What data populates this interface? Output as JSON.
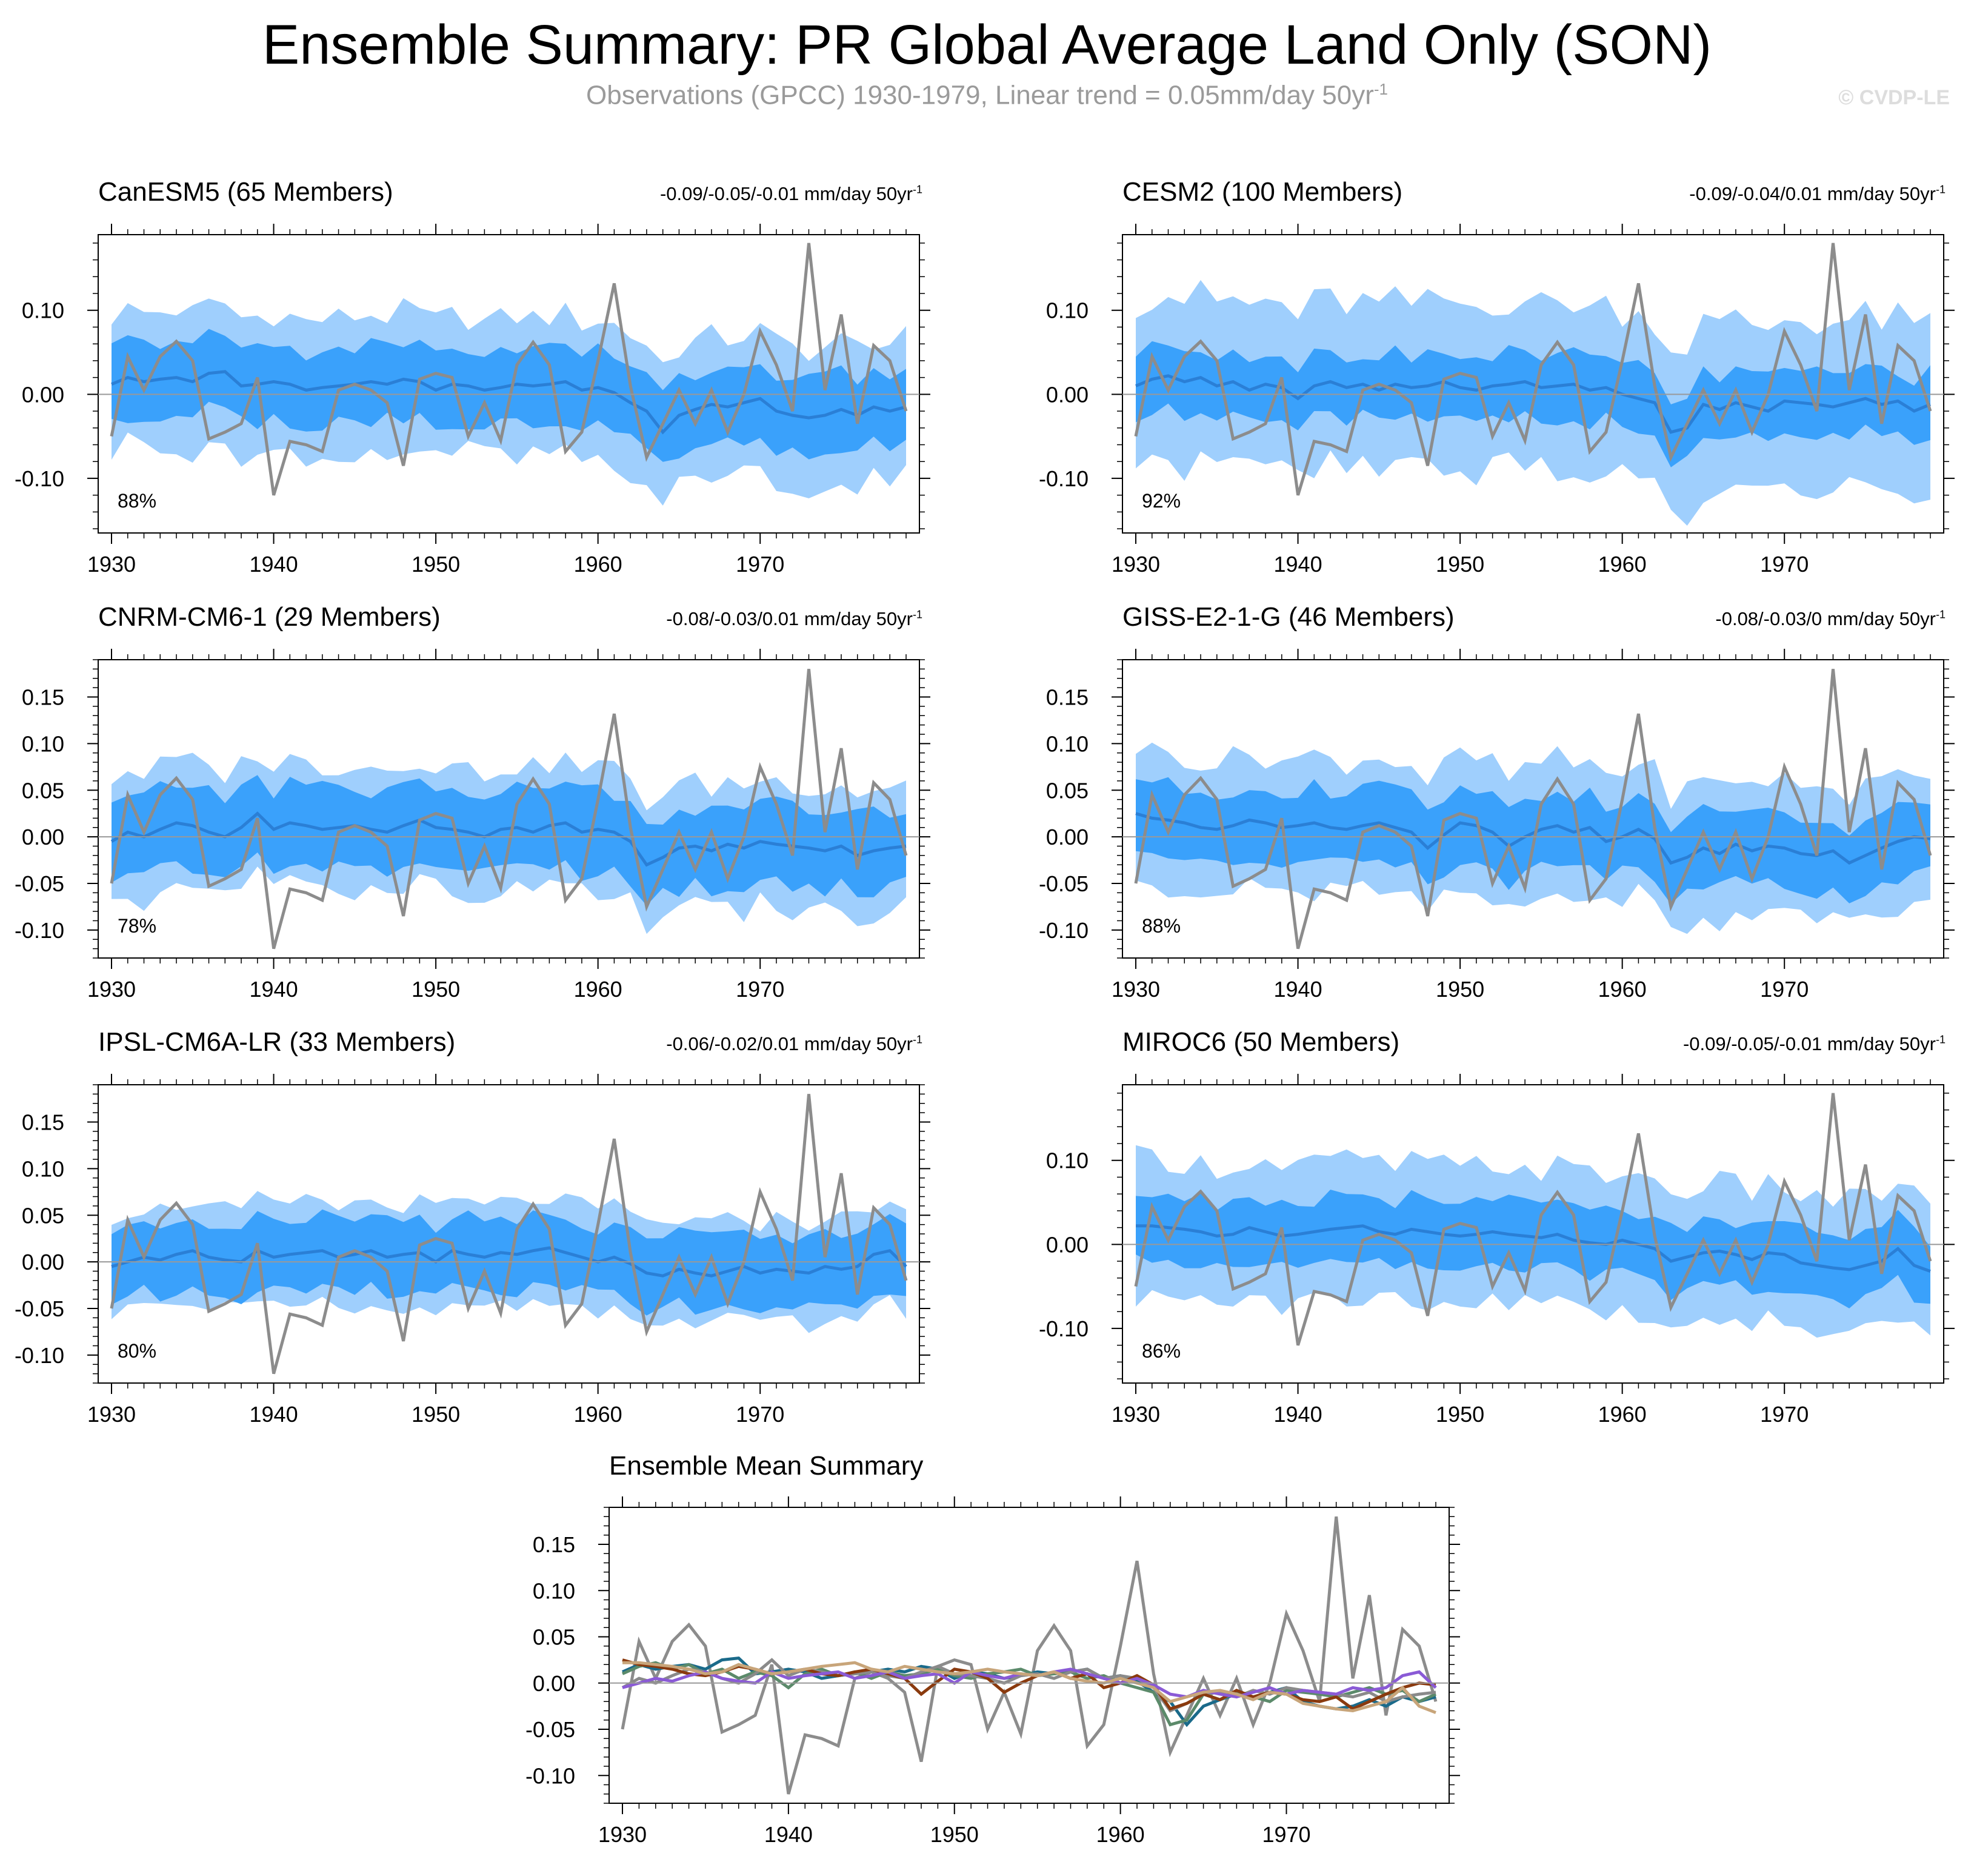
{
  "title": "Ensemble Summary: PR Global Average Land Only (SON)",
  "subtitle": {
    "text": "Observations (GPCC) 1930-1979, Linear trend = 0.05mm/day 50yr",
    "superscript": "-1"
  },
  "watermark": "© CVDP-LE",
  "unit_label": "mm/day 50yr",
  "unit_superscript": "-1",
  "colors": {
    "outer_band": "#9fcffd",
    "inner_band": "#3aa1fb",
    "ensemble_mean_line": "#2a7fd6",
    "observations_line": "#8c8c8c",
    "zero_line": "#999999"
  },
  "chart_data": [
    {
      "type": "line",
      "title": "CanESM5 (65 Members)",
      "title_color": "#1a6a8a",
      "trend_text": "-0.09/-0.05/-0.01",
      "percent": "88%",
      "x_range": [
        1930,
        1979
      ],
      "ylim": [
        -0.165,
        0.19
      ],
      "yticks": [
        -0.1,
        0,
        0.1
      ],
      "ytick_labels": [
        "-0.10",
        "0.00",
        "0.10"
      ],
      "xticks": [
        1930,
        1940,
        1950,
        1960,
        1970
      ],
      "xtick_labels": [
        "1930",
        "1940",
        "1950",
        "1960",
        "1970"
      ]
    },
    {
      "type": "line",
      "title": "CESM2 (100 Members)",
      "title_color": "#5b8a6a",
      "trend_text": "-0.09/-0.04/0.01",
      "percent": "92%",
      "x_range": [
        1930,
        1979
      ],
      "ylim": [
        -0.165,
        0.19
      ],
      "yticks": [
        -0.1,
        0,
        0.1
      ],
      "ytick_labels": [
        "-0.10",
        "0.00",
        "0.10"
      ],
      "xticks": [
        1930,
        1940,
        1950,
        1960,
        1970
      ],
      "xtick_labels": [
        "1930",
        "1940",
        "1950",
        "1960",
        "1970"
      ]
    },
    {
      "type": "line",
      "title": "CNRM-CM6-1 (29 Members)",
      "title_color": "#8a8a8a",
      "trend_text": "-0.08/-0.03/0.01",
      "percent": "78%",
      "x_range": [
        1930,
        1979
      ],
      "ylim": [
        -0.13,
        0.19
      ],
      "yticks": [
        -0.1,
        -0.05,
        0,
        0.05,
        0.1,
        0.15
      ],
      "ytick_labels": [
        "-0.10",
        "-0.05",
        "0.00",
        "0.05",
        "0.10",
        "0.15"
      ],
      "xticks": [
        1930,
        1940,
        1950,
        1960,
        1970
      ],
      "xtick_labels": [
        "1930",
        "1940",
        "1950",
        "1960",
        "1970"
      ]
    },
    {
      "type": "line",
      "title": "GISS-E2-1-G (46 Members)",
      "title_color": "#8a3a0e",
      "trend_text": "-0.08/-0.03/0",
      "percent": "88%",
      "x_range": [
        1930,
        1979
      ],
      "ylim": [
        -0.13,
        0.19
      ],
      "yticks": [
        -0.1,
        -0.05,
        0,
        0.05,
        0.1,
        0.15
      ],
      "ytick_labels": [
        "-0.10",
        "-0.05",
        "0.00",
        "0.05",
        "0.10",
        "0.15"
      ],
      "xticks": [
        1930,
        1940,
        1950,
        1960,
        1970
      ],
      "xtick_labels": [
        "1930",
        "1940",
        "1950",
        "1960",
        "1970"
      ]
    },
    {
      "type": "line",
      "title": "IPSL-CM6A-LR (33 Members)",
      "title_color": "#8a5ad6",
      "trend_text": "-0.06/-0.02/0.01",
      "percent": "80%",
      "x_range": [
        1930,
        1979
      ],
      "ylim": [
        -0.13,
        0.19
      ],
      "yticks": [
        -0.1,
        -0.05,
        0,
        0.05,
        0.1,
        0.15
      ],
      "ytick_labels": [
        "-0.10",
        "-0.05",
        "0.00",
        "0.05",
        "0.10",
        "0.15"
      ],
      "xticks": [
        1930,
        1940,
        1950,
        1960,
        1970
      ],
      "xtick_labels": [
        "1930",
        "1940",
        "1950",
        "1960",
        "1970"
      ]
    },
    {
      "type": "line",
      "title": "MIROC6 (50 Members)",
      "title_color": "#c8a57a",
      "trend_text": "-0.09/-0.05/-0.01",
      "percent": "86%",
      "x_range": [
        1930,
        1979
      ],
      "ylim": [
        -0.165,
        0.19
      ],
      "yticks": [
        -0.1,
        0,
        0.1
      ],
      "ytick_labels": [
        "-0.10",
        "0.00",
        "0.10"
      ],
      "xticks": [
        1930,
        1940,
        1950,
        1960,
        1970
      ],
      "xtick_labels": [
        "1930",
        "1940",
        "1950",
        "1960",
        "1970"
      ]
    },
    {
      "type": "line",
      "title": "Ensemble Mean Summary",
      "title_color": "#000000",
      "x_range": [
        1930,
        1979
      ],
      "ylim": [
        -0.13,
        0.19
      ],
      "yticks": [
        -0.1,
        -0.05,
        0,
        0.05,
        0.1,
        0.15
      ],
      "ytick_labels": [
        "-0.10",
        "-0.05",
        "0.00",
        "0.05",
        "0.10",
        "0.15"
      ],
      "xticks": [
        1930,
        1940,
        1950,
        1960,
        1970
      ],
      "xtick_labels": [
        "1930",
        "1940",
        "1950",
        "1960",
        "1970"
      ]
    }
  ],
  "series_data": {
    "years_start": 1930,
    "observations": [
      -0.05,
      0.045,
      0.005,
      0.045,
      0.063,
      0.04,
      -0.053,
      -0.045,
      -0.035,
      0.02,
      -0.12,
      -0.056,
      -0.06,
      -0.068,
      0.005,
      0.012,
      0.005,
      -0.01,
      -0.085,
      0.018,
      0.025,
      0.02,
      -0.05,
      -0.01,
      -0.055,
      0.035,
      0.062,
      0.035,
      -0.068,
      -0.045,
      0.04,
      0.132,
      0.01,
      -0.075,
      -0.035,
      0.005,
      -0.035,
      0.005,
      -0.045,
      0.0,
      0.075,
      0.035,
      -0.02,
      0.18,
      0.005,
      0.095,
      -0.035,
      0.058,
      0.04,
      -0.02
    ],
    "model_means": [
      [
        0.012,
        0.02,
        0.015,
        0.018,
        0.02,
        0.015,
        0.025,
        0.027,
        0.01,
        0.012,
        0.015,
        0.012,
        0.005,
        0.008,
        0.01,
        0.012,
        0.015,
        0.012,
        0.018,
        0.015,
        0.005,
        0.012,
        0.01,
        0.005,
        0.008,
        0.012,
        0.01,
        0.012,
        0.015,
        0.005,
        0.008,
        0.002,
        -0.01,
        -0.02,
        -0.045,
        -0.025,
        -0.018,
        -0.012,
        -0.015,
        -0.01,
        -0.005,
        -0.02,
        -0.025,
        -0.028,
        -0.025,
        -0.018,
        -0.025,
        -0.015,
        -0.02,
        -0.015
      ],
      [
        0.01,
        0.018,
        0.022,
        0.015,
        0.02,
        0.01,
        0.015,
        0.005,
        0.012,
        0.008,
        -0.005,
        0.01,
        0.015,
        0.008,
        0.012,
        0.005,
        0.012,
        0.008,
        0.01,
        0.015,
        0.008,
        0.005,
        0.01,
        0.012,
        0.015,
        0.008,
        0.01,
        0.012,
        0.005,
        0.008,
        0.0,
        -0.005,
        -0.01,
        -0.045,
        -0.04,
        -0.012,
        -0.018,
        -0.01,
        -0.015,
        -0.02,
        -0.008,
        -0.01,
        -0.012,
        -0.015,
        -0.01,
        -0.005,
        -0.012,
        -0.008,
        -0.02,
        -0.012
      ],
      [
        -0.005,
        0.005,
        0.0,
        0.008,
        0.015,
        0.012,
        0.005,
        0.0,
        0.01,
        0.025,
        0.008,
        0.015,
        0.012,
        0.008,
        0.01,
        0.012,
        0.008,
        0.005,
        0.012,
        0.018,
        0.01,
        0.008,
        0.005,
        0.0,
        0.008,
        0.01,
        0.005,
        0.012,
        0.015,
        0.005,
        0.008,
        0.005,
        -0.005,
        -0.03,
        -0.022,
        -0.012,
        -0.01,
        -0.015,
        -0.008,
        -0.012,
        -0.005,
        -0.008,
        -0.01,
        -0.012,
        -0.015,
        -0.01,
        -0.02,
        -0.015,
        -0.012,
        -0.01
      ],
      [
        0.025,
        0.02,
        0.018,
        0.015,
        0.01,
        0.008,
        0.012,
        0.018,
        0.015,
        0.01,
        0.012,
        0.015,
        0.01,
        0.008,
        0.012,
        0.015,
        0.01,
        0.005,
        -0.012,
        0.002,
        0.015,
        0.012,
        0.005,
        -0.01,
        0.0,
        0.008,
        0.012,
        0.005,
        0.01,
        -0.005,
        0.0,
        0.008,
        -0.002,
        -0.028,
        -0.022,
        -0.012,
        -0.018,
        -0.008,
        -0.015,
        -0.01,
        -0.012,
        -0.018,
        -0.02,
        -0.015,
        -0.028,
        -0.02,
        -0.012,
        -0.005,
        0.0,
        -0.002
      ],
      [
        -0.005,
        0.0,
        0.005,
        0.002,
        0.008,
        0.012,
        0.005,
        0.002,
        0.0,
        0.012,
        0.005,
        0.008,
        0.01,
        0.012,
        0.005,
        0.008,
        0.012,
        0.005,
        0.008,
        0.01,
        0.0,
        0.012,
        0.008,
        0.005,
        0.01,
        0.008,
        0.012,
        0.015,
        0.01,
        0.005,
        0.0,
        0.005,
        -0.002,
        -0.012,
        -0.015,
        -0.008,
        -0.012,
        -0.015,
        -0.01,
        -0.005,
        -0.012,
        -0.008,
        -0.01,
        -0.012,
        -0.005,
        -0.008,
        -0.005,
        0.008,
        0.012,
        -0.005
      ],
      [
        0.022,
        0.022,
        0.02,
        0.018,
        0.015,
        0.01,
        0.012,
        0.02,
        0.015,
        0.01,
        0.012,
        0.015,
        0.018,
        0.02,
        0.022,
        0.015,
        0.012,
        0.018,
        0.015,
        0.012,
        0.01,
        0.012,
        0.015,
        0.012,
        0.01,
        0.008,
        0.012,
        0.005,
        0.002,
        0.0,
        0.005,
        0.0,
        -0.005,
        -0.02,
        -0.015,
        -0.01,
        -0.008,
        -0.012,
        -0.018,
        -0.01,
        -0.012,
        -0.022,
        -0.025,
        -0.028,
        -0.03,
        -0.025,
        -0.02,
        -0.005,
        -0.025,
        -0.032
      ]
    ],
    "inner_spreads": [
      0.052,
      0.045,
      0.05,
      0.045,
      0.045,
      0.045
    ],
    "outer_spreads": [
      0.09,
      0.11,
      0.075,
      0.08,
      0.06,
      0.09
    ]
  }
}
